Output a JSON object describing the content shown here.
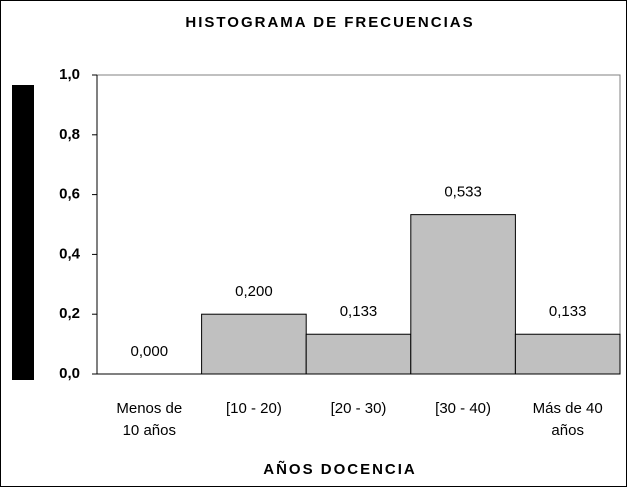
{
  "chart_data": {
    "type": "bar",
    "title": "HISTOGRAMA DE FRECUENCIAS",
    "x_label": "AÑOS DOCENCIA",
    "categories": [
      "Menos de 10 años",
      "[10 - 20)",
      "[20 - 30)",
      "[30 - 40)",
      "Más de 40 años"
    ],
    "values": [
      0.0,
      0.2,
      0.133,
      0.533,
      0.133
    ],
    "value_labels": [
      "0,000",
      "0,200",
      "0,133",
      "0,533",
      "0,133"
    ],
    "color": "#c0c0c0",
    "ylim": [
      0,
      1
    ],
    "yticks": [
      {
        "value": 0,
        "label": "0,0"
      },
      {
        "value": 0.2,
        "label": "0,2"
      },
      {
        "value": 0.4,
        "label": "0,4"
      },
      {
        "value": 0.6,
        "label": "0,6"
      },
      {
        "value": 0.8,
        "label": "0,8"
      },
      {
        "value": 1,
        "label": "1,0"
      }
    ],
    "grid": false
  }
}
